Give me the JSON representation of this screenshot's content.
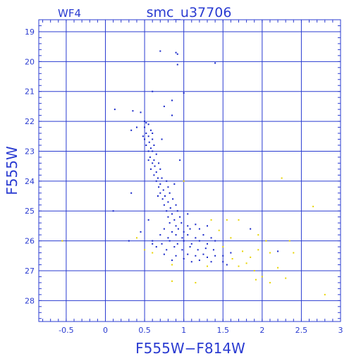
{
  "chart_data": {
    "type": "scatter",
    "title": "smc_u37706",
    "panel_label": "WF4",
    "xlabel": "F555W−F814W",
    "ylabel": "F555W",
    "xlim": [
      -0.85,
      3.0
    ],
    "ylim": [
      28.7,
      18.6
    ],
    "y_inverted": true,
    "grid": true,
    "x_ticks": [
      -0.5,
      0,
      0.5,
      1,
      1.5,
      2,
      2.5,
      3
    ],
    "x_tick_labels": [
      "-0.5",
      "0",
      "0.5",
      "1",
      "1.5",
      "2",
      "2.5",
      "3"
    ],
    "y_ticks": [
      19,
      20,
      21,
      22,
      23,
      24,
      25,
      26,
      27,
      28
    ],
    "y_tick_labels": [
      "19",
      "20",
      "21",
      "22",
      "23",
      "24",
      "25",
      "26",
      "27",
      "28"
    ],
    "colors": {
      "axes": "#2a3bd1",
      "series_blue": "#1525c8",
      "series_yellow": "#e8d400"
    },
    "series": [
      {
        "color": "#1525c8",
        "points": [
          [
            0.7,
            19.65
          ],
          [
            0.9,
            19.7
          ],
          [
            0.92,
            19.75
          ],
          [
            0.92,
            20.1
          ],
          [
            1.4,
            20.05
          ],
          [
            0.6,
            21.0
          ],
          [
            1.0,
            21.05
          ],
          [
            0.12,
            21.6
          ],
          [
            0.35,
            21.65
          ],
          [
            0.45,
            21.7
          ],
          [
            0.75,
            21.5
          ],
          [
            0.85,
            21.3
          ],
          [
            0.85,
            21.8
          ],
          [
            0.33,
            22.3
          ],
          [
            0.4,
            22.2
          ],
          [
            0.5,
            22.0
          ],
          [
            0.52,
            22.05
          ],
          [
            0.55,
            22.1
          ],
          [
            0.5,
            22.2
          ],
          [
            0.58,
            22.3
          ],
          [
            0.52,
            22.4
          ],
          [
            0.55,
            22.5
          ],
          [
            0.6,
            22.4
          ],
          [
            0.48,
            22.5
          ],
          [
            0.5,
            22.6
          ],
          [
            0.56,
            22.7
          ],
          [
            0.6,
            22.6
          ],
          [
            0.52,
            22.8
          ],
          [
            0.58,
            22.9
          ],
          [
            0.62,
            22.8
          ],
          [
            0.55,
            23.0
          ],
          [
            0.6,
            23.0
          ],
          [
            0.65,
            23.1
          ],
          [
            0.57,
            23.2
          ],
          [
            0.62,
            23.3
          ],
          [
            0.55,
            23.3
          ],
          [
            0.6,
            23.4
          ],
          [
            0.68,
            23.4
          ],
          [
            0.63,
            23.5
          ],
          [
            0.58,
            23.6
          ],
          [
            0.65,
            23.7
          ],
          [
            0.7,
            23.6
          ],
          [
            0.62,
            23.8
          ],
          [
            0.67,
            23.9
          ],
          [
            0.72,
            23.9
          ],
          [
            0.65,
            24.0
          ],
          [
            0.7,
            24.1
          ],
          [
            0.78,
            24.0
          ],
          [
            0.68,
            24.2
          ],
          [
            0.74,
            24.3
          ],
          [
            0.8,
            24.2
          ],
          [
            0.7,
            24.4
          ],
          [
            0.76,
            24.5
          ],
          [
            0.82,
            24.4
          ],
          [
            0.73,
            24.6
          ],
          [
            0.8,
            24.7
          ],
          [
            0.86,
            24.6
          ],
          [
            0.75,
            24.8
          ],
          [
            0.83,
            24.9
          ],
          [
            0.9,
            24.8
          ],
          [
            0.78,
            25.0
          ],
          [
            0.85,
            25.1
          ],
          [
            0.92,
            25.0
          ],
          [
            0.8,
            25.2
          ],
          [
            0.88,
            25.3
          ],
          [
            0.95,
            25.2
          ],
          [
            1.05,
            25.1
          ],
          [
            0.82,
            25.4
          ],
          [
            0.9,
            25.5
          ],
          [
            0.97,
            25.4
          ],
          [
            1.05,
            25.5
          ],
          [
            1.15,
            25.45
          ],
          [
            0.75,
            25.6
          ],
          [
            0.85,
            25.7
          ],
          [
            0.93,
            25.6
          ],
          [
            1.0,
            25.7
          ],
          [
            1.08,
            25.6
          ],
          [
            1.2,
            25.6
          ],
          [
            1.3,
            25.5
          ],
          [
            0.7,
            25.8
          ],
          [
            0.8,
            25.9
          ],
          [
            0.9,
            25.8
          ],
          [
            0.98,
            25.9
          ],
          [
            1.05,
            25.8
          ],
          [
            1.15,
            25.9
          ],
          [
            1.25,
            25.8
          ],
          [
            1.35,
            25.9
          ],
          [
            0.6,
            26.0
          ],
          [
            0.72,
            26.1
          ],
          [
            0.82,
            26.0
          ],
          [
            0.92,
            26.1
          ],
          [
            1.0,
            26.0
          ],
          [
            1.1,
            26.1
          ],
          [
            1.2,
            26.0
          ],
          [
            1.3,
            26.1
          ],
          [
            1.4,
            26.0
          ],
          [
            0.65,
            26.2
          ],
          [
            0.78,
            26.3
          ],
          [
            0.88,
            26.2
          ],
          [
            0.98,
            26.3
          ],
          [
            1.08,
            26.2
          ],
          [
            1.18,
            26.3
          ],
          [
            1.28,
            26.25
          ],
          [
            1.38,
            26.3
          ],
          [
            0.75,
            26.45
          ],
          [
            0.9,
            26.5
          ],
          [
            1.05,
            26.45
          ],
          [
            1.15,
            26.5
          ],
          [
            1.25,
            26.45
          ],
          [
            1.4,
            26.5
          ],
          [
            0.85,
            26.65
          ],
          [
            1.0,
            26.6
          ],
          [
            1.2,
            26.65
          ],
          [
            1.35,
            26.7
          ],
          [
            1.5,
            26.5
          ],
          [
            1.5,
            26.7
          ],
          [
            1.6,
            26.4
          ],
          [
            1.55,
            26.8
          ],
          [
            0.1,
            25.0
          ],
          [
            0.33,
            24.4
          ],
          [
            0.3,
            26.0
          ],
          [
            0.45,
            25.7
          ],
          [
            0.55,
            25.3
          ],
          [
            0.6,
            26.1
          ],
          [
            1.85,
            25.6
          ],
          [
            2.2,
            26.35
          ],
          [
            0.95,
            23.3
          ],
          [
            0.72,
            22.6
          ],
          [
            0.67,
            24.5
          ],
          [
            0.88,
            24.1
          ],
          [
            1.1,
            26.7
          ],
          [
            1.3,
            26.55
          ]
        ]
      },
      {
        "color": "#e8d400",
        "points": [
          [
            -0.55,
            26.0
          ],
          [
            0.4,
            25.9
          ],
          [
            0.5,
            26.3
          ],
          [
            0.85,
            27.35
          ],
          [
            1.0,
            24.0
          ],
          [
            1.15,
            27.4
          ],
          [
            1.35,
            25.3
          ],
          [
            1.45,
            25.65
          ],
          [
            1.5,
            26.2
          ],
          [
            1.55,
            25.3
          ],
          [
            1.6,
            25.9
          ],
          [
            1.62,
            26.6
          ],
          [
            1.7,
            25.3
          ],
          [
            1.7,
            26.85
          ],
          [
            1.75,
            26.35
          ],
          [
            1.8,
            26.75
          ],
          [
            1.85,
            26.55
          ],
          [
            1.9,
            27.0
          ],
          [
            1.92,
            27.3
          ],
          [
            1.95,
            26.3
          ],
          [
            2.0,
            27.2
          ],
          [
            2.05,
            26.0
          ],
          [
            2.1,
            26.4
          ],
          [
            2.1,
            27.4
          ],
          [
            2.2,
            26.9
          ],
          [
            2.25,
            23.9
          ],
          [
            2.3,
            27.25
          ],
          [
            2.35,
            26.0
          ],
          [
            2.4,
            26.4
          ],
          [
            2.65,
            24.85
          ],
          [
            2.8,
            27.8
          ],
          [
            0.6,
            26.4
          ],
          [
            0.85,
            26.8
          ],
          [
            1.3,
            26.85
          ],
          [
            1.95,
            25.8
          ]
        ]
      }
    ]
  }
}
